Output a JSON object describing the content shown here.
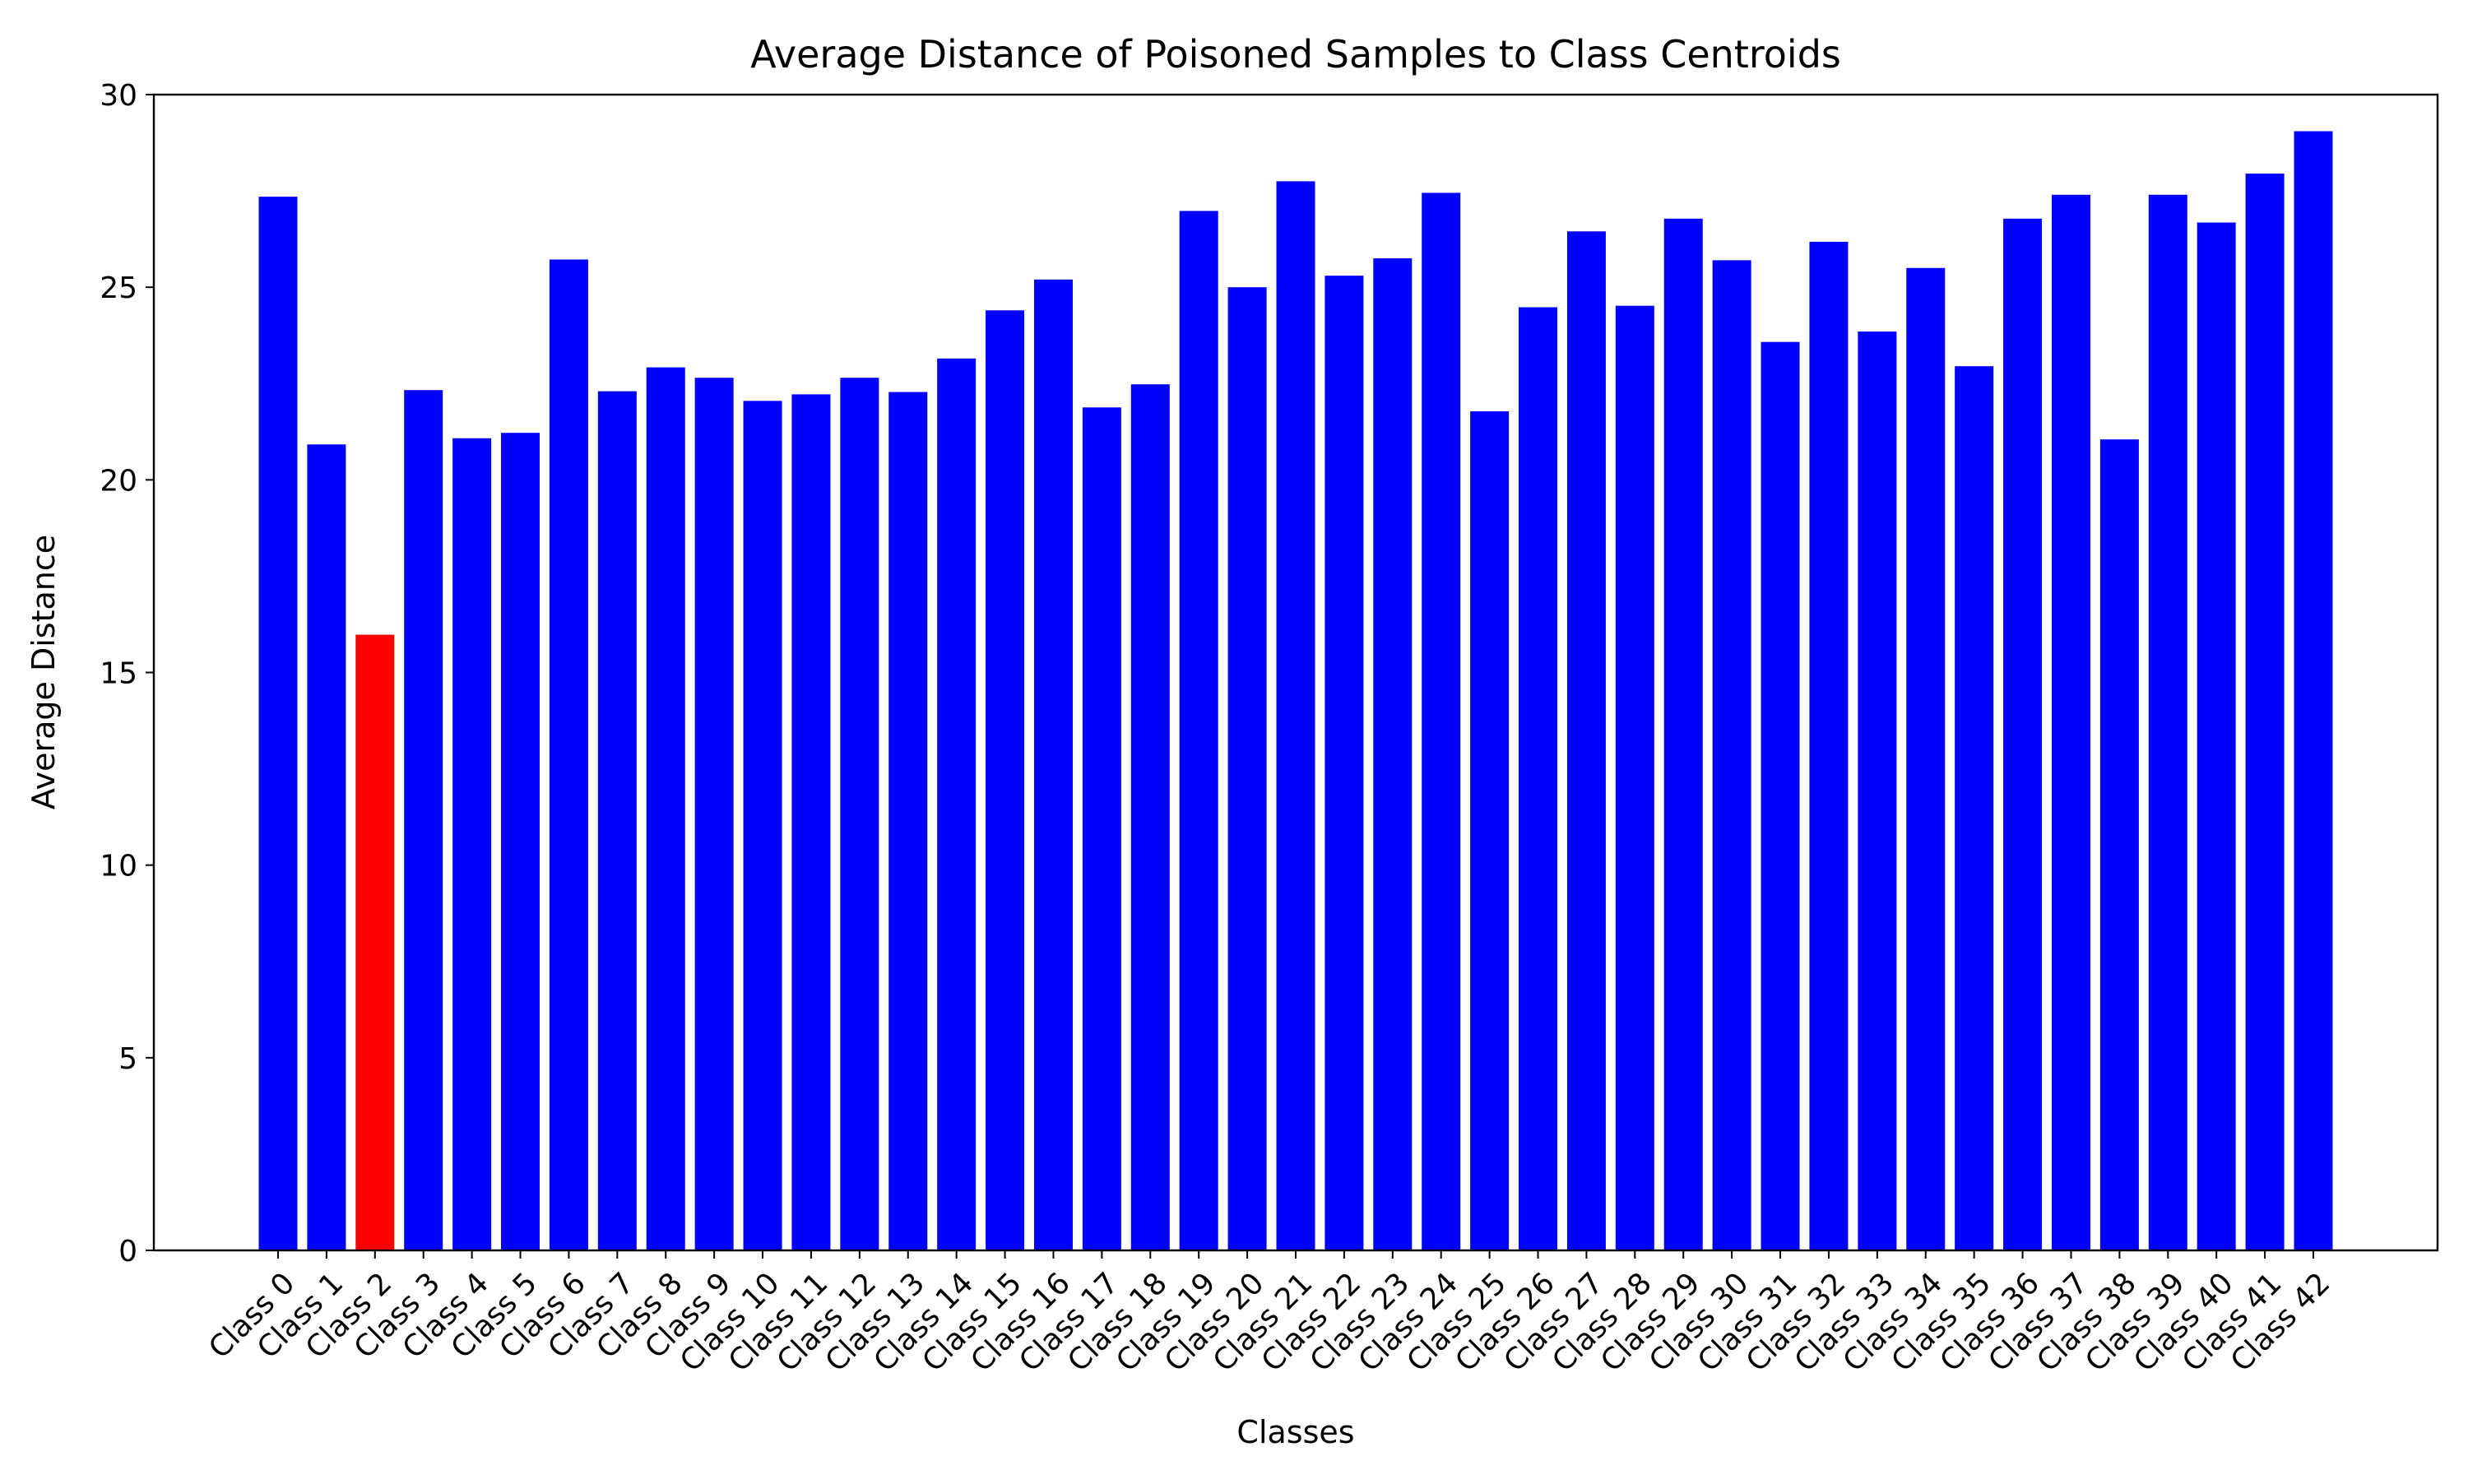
{
  "chart_data": {
    "type": "bar",
    "title": "Average Distance of Poisoned Samples to Class Centroids",
    "xlabel": "Classes",
    "ylabel": "Average Distance",
    "ylim": [
      0,
      30
    ],
    "yticks": [
      0,
      5,
      10,
      15,
      20,
      25,
      30
    ],
    "grid": false,
    "legend": "none",
    "categories": [
      "Class 0",
      "Class 1",
      "Class 2",
      "Class 3",
      "Class 4",
      "Class 5",
      "Class 6",
      "Class 7",
      "Class 8",
      "Class 9",
      "Class 10",
      "Class 11",
      "Class 12",
      "Class 13",
      "Class 14",
      "Class 15",
      "Class 16",
      "Class 17",
      "Class 18",
      "Class 19",
      "Class 20",
      "Class 21",
      "Class 22",
      "Class 23",
      "Class 24",
      "Class 25",
      "Class 26",
      "Class 27",
      "Class 28",
      "Class 29",
      "Class 30",
      "Class 31",
      "Class 32",
      "Class 33",
      "Class 34",
      "Class 35",
      "Class 36",
      "Class 37",
      "Class 38",
      "Class 39",
      "Class 40",
      "Class 41",
      "Class 42"
    ],
    "values": [
      27.35,
      20.92,
      15.98,
      22.33,
      21.08,
      21.22,
      25.72,
      22.3,
      22.92,
      22.65,
      22.05,
      22.22,
      22.65,
      22.28,
      23.15,
      24.4,
      25.2,
      21.88,
      22.48,
      26.98,
      25.0,
      27.75,
      25.3,
      25.75,
      27.45,
      21.78,
      24.48,
      26.45,
      24.52,
      26.78,
      25.7,
      23.58,
      26.18,
      23.85,
      25.5,
      22.95,
      26.78,
      27.4,
      21.05,
      27.4,
      26.68,
      27.95,
      29.05
    ],
    "highlighted_category": "Class 2",
    "colors": {
      "bar": "#0000ff",
      "highlight": "#ff0000",
      "axis": "#000000",
      "background": "#ffffff"
    }
  }
}
